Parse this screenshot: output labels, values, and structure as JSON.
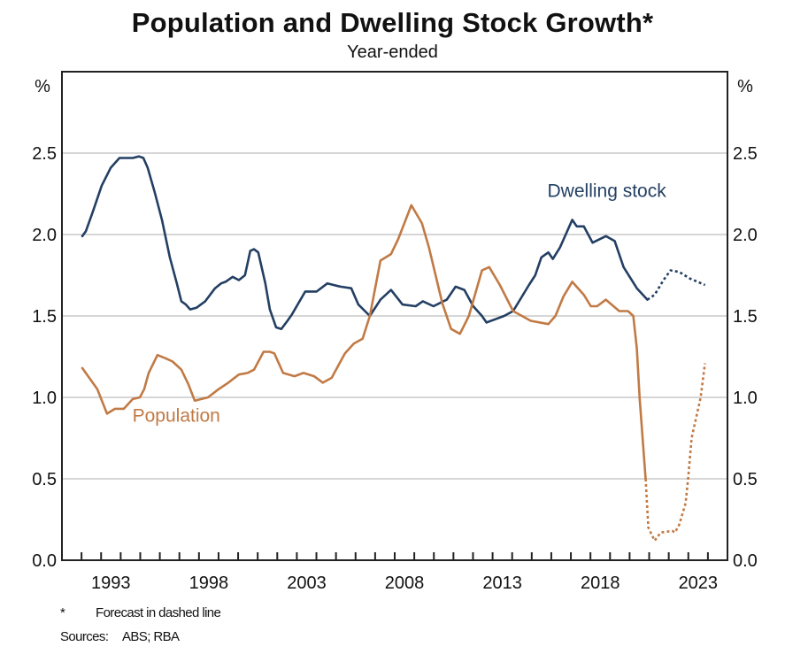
{
  "chart_data": {
    "type": "line",
    "title": "Population and Dwelling Stock Growth*",
    "subtitle": "Year-ended",
    "xlabel": "",
    "ylabel_left": "%",
    "ylabel_right": "%",
    "xlim": [
      1991,
      2025
    ],
    "ylim": [
      0,
      3.0
    ],
    "yticks": [
      0.0,
      0.5,
      1.0,
      1.5,
      2.0,
      2.5
    ],
    "ytick_labels": [
      "0.0",
      "0.5",
      "1.0",
      "1.5",
      "2.0",
      "2.5"
    ],
    "xtick_years": [
      1992,
      1993,
      1994,
      1995,
      1996,
      1997,
      1998,
      1999,
      2000,
      2001,
      2002,
      2003,
      2004,
      2005,
      2006,
      2007,
      2008,
      2009,
      2010,
      2011,
      2012,
      2013,
      2014,
      2015,
      2016,
      2017,
      2018,
      2019,
      2020,
      2021,
      2022,
      2023,
      2024
    ],
    "xtick_labels": [
      "1993",
      "1998",
      "2003",
      "2008",
      "2013",
      "2018",
      "2023"
    ],
    "grid": true,
    "series": [
      {
        "name": "Dwelling stock",
        "color": "#233f63",
        "actual": {
          "x": [
            1992.04,
            1992.22,
            1992.58,
            1993.03,
            1993.49,
            1993.94,
            1994.39,
            1994.62,
            1994.93,
            1995.16,
            1995.38,
            1995.74,
            1996.11,
            1996.51,
            1996.87,
            1997.1,
            1997.33,
            1997.55,
            1997.87,
            1998.32,
            1998.82,
            1999.13,
            1999.36,
            1999.72,
            2000.04,
            2000.35,
            2000.62,
            2000.81,
            2001.03,
            2001.39,
            2001.62,
            2001.94,
            2002.21,
            2002.52,
            2002.75,
            2003.43,
            2004.01,
            2004.56,
            2005.23,
            2005.78,
            2006.14,
            2006.73,
            2007.27,
            2007.81,
            2008.4,
            2009.07,
            2009.44,
            2009.98,
            2010.66,
            2011.11,
            2011.56,
            2012.01,
            2012.46,
            2012.69,
            2013.14,
            2013.59,
            2014.05,
            2014.86,
            2015.18,
            2015.49,
            2015.85,
            2016.08,
            2016.44,
            2017.07,
            2017.3,
            2017.66,
            2018.11,
            2018.79,
            2019.24,
            2019.69,
            2020.37,
            2020.91
          ],
          "y": [
            1.99,
            2.02,
            2.14,
            2.3,
            2.41,
            2.47,
            2.47,
            2.47,
            2.48,
            2.47,
            2.41,
            2.26,
            2.09,
            1.86,
            1.7,
            1.59,
            1.57,
            1.54,
            1.55,
            1.59,
            1.67,
            1.7,
            1.71,
            1.74,
            1.72,
            1.75,
            1.9,
            1.91,
            1.89,
            1.7,
            1.54,
            1.43,
            1.42,
            1.47,
            1.51,
            1.65,
            1.65,
            1.7,
            1.68,
            1.67,
            1.57,
            1.5,
            1.6,
            1.66,
            1.57,
            1.56,
            1.59,
            1.56,
            1.6,
            1.68,
            1.66,
            1.56,
            1.5,
            1.46,
            1.48,
            1.5,
            1.53,
            1.69,
            1.75,
            1.86,
            1.89,
            1.85,
            1.92,
            2.09,
            2.05,
            2.05,
            1.95,
            1.99,
            1.96,
            1.8,
            1.67,
            1.6
          ]
        },
        "forecast": {
          "x": [
            2020.91,
            2021.28,
            2021.73,
            2022.09,
            2022.54,
            2023.08,
            2023.85
          ],
          "y": [
            1.6,
            1.63,
            1.72,
            1.78,
            1.77,
            1.73,
            1.69
          ]
        },
        "label_pos": {
          "year": 2015.8,
          "value": 2.23
        }
      },
      {
        "name": "Population",
        "color": "#c17a45",
        "actual": {
          "x": [
            1992.04,
            1992.81,
            1993.3,
            1993.71,
            1994.16,
            1994.62,
            1994.98,
            1995.2,
            1995.43,
            1995.88,
            1996.29,
            1996.65,
            1997.1,
            1997.46,
            1997.78,
            1998.46,
            1999.0,
            1999.5,
            2000.04,
            2000.49,
            2000.81,
            2001.3,
            2001.62,
            2001.85,
            2002.3,
            2002.88,
            2003.34,
            2003.88,
            2004.33,
            2004.78,
            2005.14,
            2005.46,
            2005.91,
            2006.36,
            2006.73,
            2007.27,
            2007.81,
            2008.17,
            2008.85,
            2009.39,
            2009.75,
            2010.43,
            2010.88,
            2011.33,
            2011.79,
            2012.46,
            2012.83,
            2013.37,
            2014.05,
            2014.5,
            2014.95,
            2015.85,
            2016.21,
            2016.62,
            2017.07,
            2017.66,
            2018.02,
            2018.34,
            2018.79,
            2019.47,
            2019.92,
            2020.19,
            2020.37,
            2020.51,
            2020.82
          ],
          "y": [
            1.18,
            1.05,
            0.9,
            0.93,
            0.93,
            0.99,
            1.0,
            1.05,
            1.15,
            1.26,
            1.24,
            1.22,
            1.17,
            1.08,
            0.98,
            1.0,
            1.05,
            1.09,
            1.14,
            1.15,
            1.17,
            1.28,
            1.28,
            1.27,
            1.15,
            1.13,
            1.15,
            1.13,
            1.09,
            1.12,
            1.2,
            1.27,
            1.33,
            1.36,
            1.5,
            1.84,
            1.88,
            1.97,
            2.18,
            2.07,
            1.92,
            1.58,
            1.42,
            1.39,
            1.5,
            1.78,
            1.8,
            1.69,
            1.53,
            1.5,
            1.47,
            1.45,
            1.5,
            1.62,
            1.71,
            1.63,
            1.56,
            1.56,
            1.6,
            1.53,
            1.53,
            1.5,
            1.3,
            1.0,
            0.5
          ]
        },
        "forecast": {
          "x": [
            2020.82,
            2020.96,
            2021.28,
            2021.59,
            2022.18,
            2022.32,
            2022.54,
            2022.86,
            2022.99,
            2023.17,
            2023.63,
            2023.85
          ],
          "y": [
            0.5,
            0.2,
            0.12,
            0.17,
            0.18,
            0.17,
            0.22,
            0.35,
            0.5,
            0.75,
            1.0,
            1.21
          ]
        },
        "label_pos": {
          "year": 1994.6,
          "value": 0.85
        }
      }
    ],
    "legend": "inline-labels",
    "footnotes": {
      "marker": "*",
      "note": "Forecast in dashed line",
      "sources_label": "Sources:",
      "sources": "ABS; RBA"
    }
  }
}
